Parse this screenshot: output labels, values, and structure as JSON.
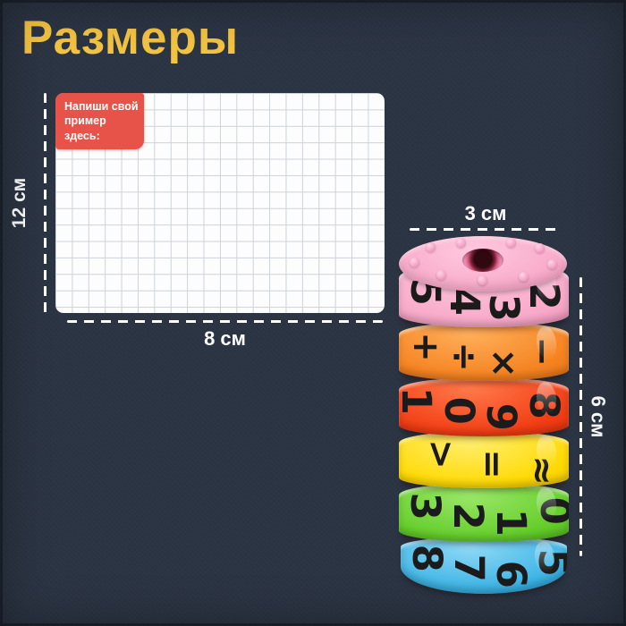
{
  "title": "Размеры",
  "colors": {
    "background": "#2b3443",
    "title": "#f2c241",
    "badge": "#e85349",
    "grid_line": "#cdd3db",
    "dimension": "#ffffff"
  },
  "grid": {
    "note_line1": "Напиши свой",
    "note_line2": "пример здесь:",
    "height_label": "12 см",
    "width_label": "8 см"
  },
  "toy": {
    "diameter_label": "3 см",
    "height_label": "6 см",
    "rings": [
      {
        "name": "pink",
        "base": "#f8a8c8",
        "light": "#ffc9de",
        "dark": "#e17ba6",
        "symbols": [
          "5",
          "4",
          "3",
          "2"
        ]
      },
      {
        "name": "orange",
        "base": "#f58220",
        "light": "#ffb05c",
        "dark": "#d96a0e",
        "symbols": [
          "+",
          "÷",
          "×",
          "−"
        ]
      },
      {
        "name": "red",
        "base": "#f23d14",
        "light": "#ff7a4a",
        "dark": "#cf2a0a",
        "symbols": [
          "1",
          "0",
          "9",
          "8"
        ]
      },
      {
        "name": "yellow",
        "base": "#ffd903",
        "light": "#ffef6e",
        "dark": "#e0b400",
        "symbols": [
          ">",
          "=",
          "≈"
        ]
      },
      {
        "name": "green",
        "base": "#64cd2a",
        "light": "#9ce86a",
        "dark": "#46a916",
        "symbols": [
          "3",
          "2",
          "1",
          "0"
        ]
      },
      {
        "name": "blue",
        "base": "#3ab3e5",
        "light": "#8fd9f5",
        "dark": "#1f90c4",
        "symbols": [
          "8",
          "7",
          "6",
          "5"
        ]
      }
    ]
  }
}
